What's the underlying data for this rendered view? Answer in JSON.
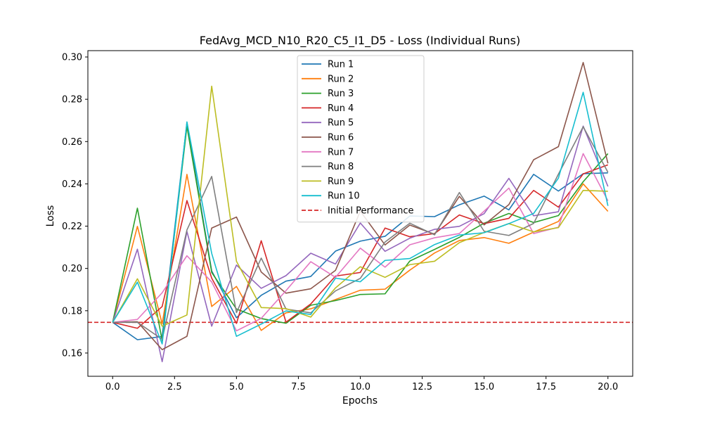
{
  "chart_data": {
    "type": "line",
    "title": "FedAvg_MCD_N10_R20_C5_I1_D5 - Loss (Individual Runs)",
    "xlabel": "Epochs",
    "ylabel": "Loss",
    "xlim": [
      -1,
      21
    ],
    "ylim": [
      0.149,
      0.303
    ],
    "xticks": [
      0.0,
      2.5,
      5.0,
      7.5,
      10.0,
      12.5,
      15.0,
      17.5,
      20.0
    ],
    "xtick_labels": [
      "0.0",
      "2.5",
      "5.0",
      "7.5",
      "10.0",
      "12.5",
      "15.0",
      "17.5",
      "20.0"
    ],
    "yticks": [
      0.16,
      0.18,
      0.2,
      0.22,
      0.24,
      0.26,
      0.28,
      0.3
    ],
    "ytick_labels": [
      "0.16",
      "0.18",
      "0.20",
      "0.22",
      "0.24",
      "0.26",
      "0.28",
      "0.30"
    ],
    "grid": false,
    "legend_position": "top-center",
    "x": [
      0,
      1,
      2,
      3,
      4,
      5,
      6,
      7,
      8,
      9,
      10,
      11,
      12,
      13,
      14,
      15,
      16,
      17,
      18,
      19,
      20
    ],
    "series": [
      {
        "name": "Run 1",
        "color": "#1f77b4",
        "values": [
          0.1745,
          0.1663,
          0.1678,
          0.269,
          0.1988,
          0.1767,
          0.1873,
          0.194,
          0.1962,
          0.2082,
          0.2129,
          0.2152,
          0.2248,
          0.2245,
          0.2301,
          0.2342,
          0.2277,
          0.2445,
          0.2366,
          0.2448,
          0.2452
        ]
      },
      {
        "name": "Run 2",
        "color": "#ff7f0e",
        "values": [
          0.1745,
          0.2199,
          0.1738,
          0.2445,
          0.182,
          0.1915,
          0.1707,
          0.179,
          0.1809,
          0.1853,
          0.1897,
          0.1902,
          0.1992,
          0.2073,
          0.2132,
          0.2146,
          0.2119,
          0.2172,
          0.2222,
          0.24,
          0.227
        ]
      },
      {
        "name": "Run 3",
        "color": "#2ca02c",
        "values": [
          0.1745,
          0.2285,
          0.1658,
          0.2672,
          0.1981,
          0.1808,
          0.1763,
          0.1741,
          0.1826,
          0.1848,
          0.1877,
          0.188,
          0.2035,
          0.209,
          0.2147,
          0.2214,
          0.226,
          0.2217,
          0.225,
          0.241,
          0.2543
        ]
      },
      {
        "name": "Run 4",
        "color": "#d62728",
        "values": [
          0.1745,
          0.1717,
          0.182,
          0.2321,
          0.1954,
          0.174,
          0.2131,
          0.1746,
          0.1832,
          0.1964,
          0.1981,
          0.2191,
          0.215,
          0.2165,
          0.2253,
          0.2212,
          0.2237,
          0.2369,
          0.229,
          0.2447,
          0.249
        ]
      },
      {
        "name": "Run 5",
        "color": "#9467bd",
        "values": [
          0.1745,
          0.2091,
          0.1559,
          0.2175,
          0.1727,
          0.2016,
          0.1906,
          0.1966,
          0.2072,
          0.2021,
          0.2215,
          0.2081,
          0.2143,
          0.2185,
          0.2199,
          0.2259,
          0.2426,
          0.2249,
          0.2268,
          0.2673,
          0.2388
        ]
      },
      {
        "name": "Run 6",
        "color": "#8c564b",
        "values": [
          0.1745,
          0.1748,
          0.1616,
          0.1679,
          0.2191,
          0.2243,
          0.1983,
          0.1883,
          0.1904,
          0.1991,
          0.2271,
          0.2111,
          0.2205,
          0.2162,
          0.2341,
          0.2206,
          0.2302,
          0.2514,
          0.2576,
          0.2974,
          0.2497
        ]
      },
      {
        "name": "Run 7",
        "color": "#e377c2",
        "values": [
          0.1745,
          0.1759,
          0.1885,
          0.206,
          0.1936,
          0.1705,
          0.1764,
          0.1895,
          0.2032,
          0.1958,
          0.2096,
          0.2006,
          0.2112,
          0.2145,
          0.2165,
          0.2271,
          0.238,
          0.2165,
          0.2195,
          0.2543,
          0.232
        ]
      },
      {
        "name": "Run 8",
        "color": "#7f7f7f",
        "values": [
          0.1745,
          0.1745,
          0.1665,
          0.2182,
          0.2435,
          0.1791,
          0.2049,
          0.1808,
          0.179,
          0.1894,
          0.1953,
          0.2125,
          0.2214,
          0.2159,
          0.2359,
          0.2176,
          0.2156,
          0.2213,
          0.2446,
          0.267,
          0.2455
        ]
      },
      {
        "name": "Run 9",
        "color": "#bcbd22",
        "values": [
          0.1745,
          0.1951,
          0.1727,
          0.178,
          0.2862,
          0.2034,
          0.1815,
          0.181,
          0.177,
          0.1908,
          0.2008,
          0.1958,
          0.2018,
          0.2034,
          0.2122,
          0.217,
          0.2212,
          0.2173,
          0.2193,
          0.2369,
          0.2365
        ]
      },
      {
        "name": "Run 10",
        "color": "#17becf",
        "values": [
          0.1745,
          0.1935,
          0.1643,
          0.2693,
          0.2071,
          0.1679,
          0.1737,
          0.1799,
          0.1782,
          0.1954,
          0.1937,
          0.2038,
          0.2047,
          0.2113,
          0.2158,
          0.2169,
          0.2212,
          0.226,
          0.2427,
          0.2833,
          0.2296
        ]
      }
    ],
    "reference_line": {
      "name": "Initial Performance",
      "value": 0.1745,
      "color": "#d62728",
      "style": "dashed"
    }
  }
}
